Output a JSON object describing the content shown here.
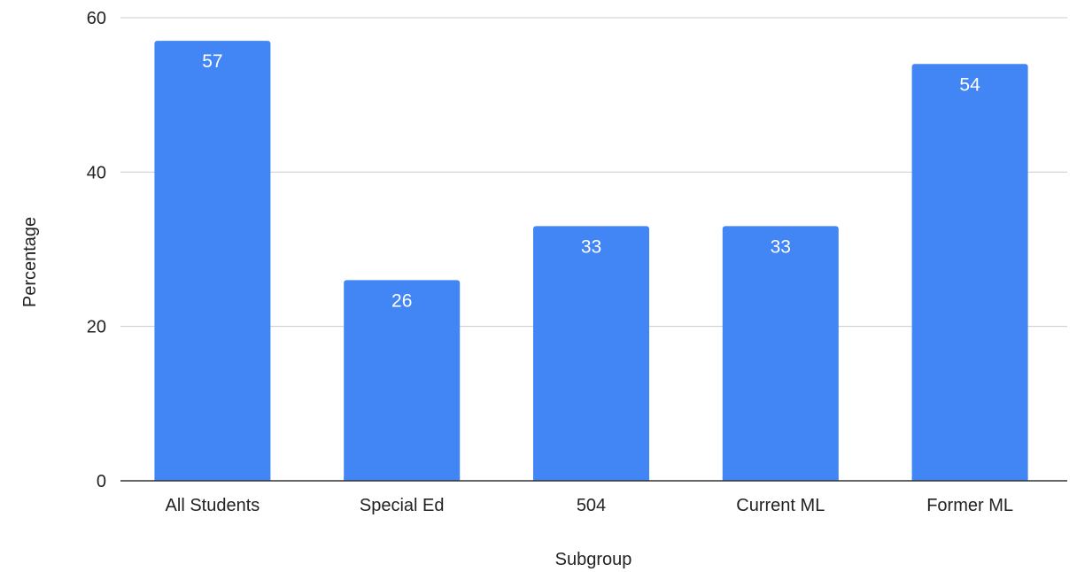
{
  "chart_data": {
    "type": "bar",
    "title": "",
    "xlabel": "Subgroup",
    "ylabel": "Percentage",
    "categories": [
      "All Students",
      "Special Ed",
      "504",
      "Current ML",
      "Former ML"
    ],
    "series": [
      {
        "values": [
          57,
          26,
          33,
          33,
          54
        ],
        "color": "#4285f4"
      }
    ],
    "ylim": [
      0,
      60
    ],
    "yticks": [
      "0",
      "20",
      "40",
      "60"
    ],
    "data_labels": [
      "57",
      "26",
      "33",
      "33",
      "54"
    ],
    "grid": true,
    "legend": "none"
  },
  "colors": {
    "bar": "#4285f4",
    "grid": "#cccccc",
    "axis": "#333333",
    "text": "#222222",
    "label": "#ffffff"
  }
}
